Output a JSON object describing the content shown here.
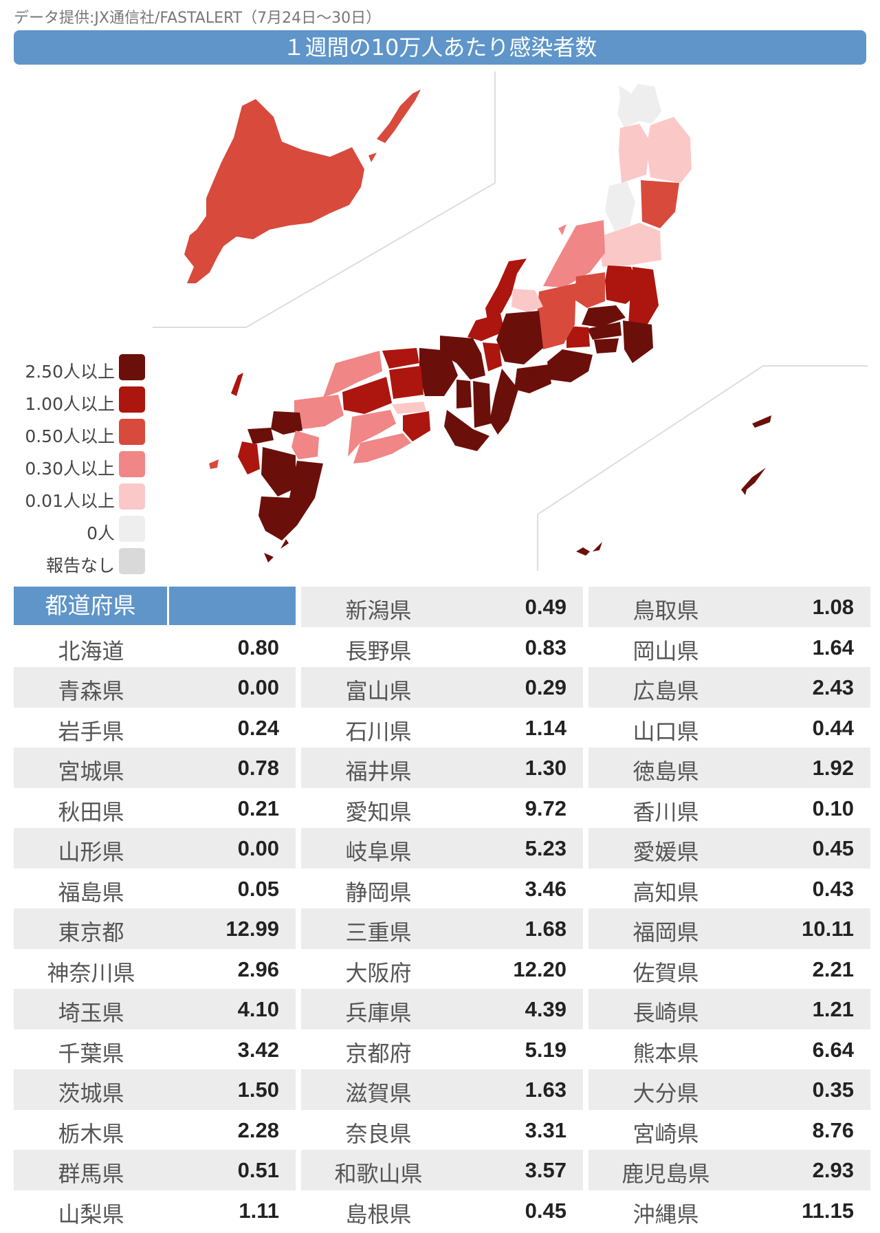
{
  "source": "データ提供:JX通信社/FASTALERT（7月24日～30日）",
  "title": "１週間の10万人あたり感染者数",
  "legend": [
    {
      "label": "2.50人以上",
      "color": "#6b0f0a"
    },
    {
      "label": "1.00人以上",
      "color": "#ad150f"
    },
    {
      "label": "0.50人以上",
      "color": "#d84a3c"
    },
    {
      "label": "0.30人以上",
      "color": "#f08686"
    },
    {
      "label": "0.01人以上",
      "color": "#fbc8c8"
    },
    {
      "label": "0人",
      "color": "#eeeeee"
    },
    {
      "label": "報告なし",
      "color": "#d9d9d9"
    }
  ],
  "table": {
    "header": "都道府県",
    "columns": [
      [
        {
          "name": "北海道",
          "value": "0.80"
        },
        {
          "name": "青森県",
          "value": "0.00"
        },
        {
          "name": "岩手県",
          "value": "0.24"
        },
        {
          "name": "宮城県",
          "value": "0.78"
        },
        {
          "name": "秋田県",
          "value": "0.21"
        },
        {
          "name": "山形県",
          "value": "0.00"
        },
        {
          "name": "福島県",
          "value": "0.05"
        },
        {
          "name": "東京都",
          "value": "12.99"
        },
        {
          "name": "神奈川県",
          "value": "2.96"
        },
        {
          "name": "埼玉県",
          "value": "4.10"
        },
        {
          "name": "千葉県",
          "value": "3.42"
        },
        {
          "name": "茨城県",
          "value": "1.50"
        },
        {
          "name": "栃木県",
          "value": "2.28"
        },
        {
          "name": "群馬県",
          "value": "0.51"
        },
        {
          "name": "山梨県",
          "value": "1.11"
        }
      ],
      [
        {
          "name": "新潟県",
          "value": "0.49"
        },
        {
          "name": "長野県",
          "value": "0.83"
        },
        {
          "name": "富山県",
          "value": "0.29"
        },
        {
          "name": "石川県",
          "value": "1.14"
        },
        {
          "name": "福井県",
          "value": "1.30"
        },
        {
          "name": "愛知県",
          "value": "9.72"
        },
        {
          "name": "岐阜県",
          "value": "5.23"
        },
        {
          "name": "静岡県",
          "value": "3.46"
        },
        {
          "name": "三重県",
          "value": "1.68"
        },
        {
          "name": "大阪府",
          "value": "12.20"
        },
        {
          "name": "兵庫県",
          "value": "4.39"
        },
        {
          "name": "京都府",
          "value": "5.19"
        },
        {
          "name": "滋賀県",
          "value": "1.63"
        },
        {
          "name": "奈良県",
          "value": "3.31"
        },
        {
          "name": "和歌山県",
          "value": "3.57"
        },
        {
          "name": "島根県",
          "value": "0.45"
        }
      ],
      [
        {
          "name": "鳥取県",
          "value": "1.08"
        },
        {
          "name": "岡山県",
          "value": "1.64"
        },
        {
          "name": "広島県",
          "value": "2.43"
        },
        {
          "name": "山口県",
          "value": "0.44"
        },
        {
          "name": "徳島県",
          "value": "1.92"
        },
        {
          "name": "香川県",
          "value": "0.10"
        },
        {
          "name": "愛媛県",
          "value": "0.45"
        },
        {
          "name": "高知県",
          "value": "0.43"
        },
        {
          "name": "福岡県",
          "value": "10.11"
        },
        {
          "name": "佐賀県",
          "value": "2.21"
        },
        {
          "name": "長崎県",
          "value": "1.21"
        },
        {
          "name": "熊本県",
          "value": "6.64"
        },
        {
          "name": "大分県",
          "value": "0.35"
        },
        {
          "name": "宮崎県",
          "value": "8.76"
        },
        {
          "name": "鹿児島県",
          "value": "2.93"
        },
        {
          "name": "沖縄県",
          "value": "11.15"
        }
      ]
    ]
  }
}
